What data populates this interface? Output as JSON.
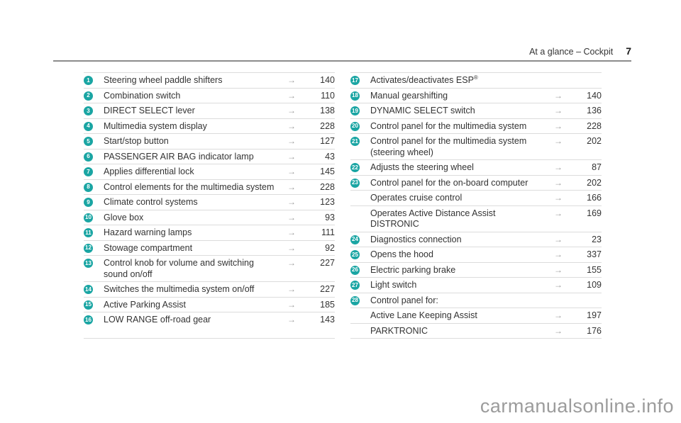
{
  "header": {
    "title": "At a glance – Cockpit",
    "page_number": "7"
  },
  "arrow_glyph": "→",
  "colors": {
    "accent_teal": "#1aa5a3",
    "separator": "#dcdcdc",
    "text": "#333333",
    "arrow_gray": "#9b9b9b",
    "watermark_gray": "#9c9c9c"
  },
  "columns": {
    "left": [
      {
        "num": "1",
        "label": "Steering wheel paddle shifters",
        "page": "140"
      },
      {
        "num": "2",
        "label": "Combination switch",
        "page": "110"
      },
      {
        "num": "3",
        "label": "DIRECT SELECT lever",
        "page": "138"
      },
      {
        "num": "4",
        "label": "Multimedia system display",
        "page": "228"
      },
      {
        "num": "5",
        "label": "Start/stop button",
        "page": "127"
      },
      {
        "num": "6",
        "label": "PASSENGER AIR BAG indicator lamp",
        "page": "43"
      },
      {
        "num": "7",
        "label": "Applies differential lock",
        "page": "145"
      },
      {
        "num": "8",
        "label": "Control elements for the multimedia system",
        "page": "228"
      },
      {
        "num": "9",
        "label": "Climate control systems",
        "page": "123"
      },
      {
        "num": "10",
        "label": "Glove box",
        "page": "93"
      },
      {
        "num": "11",
        "label": "Hazard warning lamps",
        "page": "111"
      },
      {
        "num": "12",
        "label": "Stowage compartment",
        "page": "92"
      },
      {
        "num": "13",
        "label": "Control knob for volume and switching sound on/off",
        "page": "227"
      },
      {
        "num": "14",
        "label": "Switches the multimedia system on/off",
        "page": "227"
      },
      {
        "num": "15",
        "label": "Active Parking Assist",
        "page": "185"
      },
      {
        "num": "16",
        "label": "LOW RANGE off-road gear",
        "page": "143"
      }
    ],
    "right": [
      {
        "num": "17",
        "label": "Activates/deactivates ESP",
        "sup": "®",
        "page": ""
      },
      {
        "num": "18",
        "label": "Manual gearshifting",
        "page": "140"
      },
      {
        "num": "19",
        "label": "DYNAMIC SELECT switch",
        "page": "136"
      },
      {
        "num": "20",
        "label": "Control panel for the multimedia system",
        "page": "228"
      },
      {
        "num": "21",
        "label": "Control panel for the multimedia system (steering wheel)",
        "page": "202"
      },
      {
        "num": "22",
        "label": "Adjusts the steering wheel",
        "page": "87"
      },
      {
        "num": "23",
        "label": "Control panel for the on-board computer",
        "page": "202"
      },
      {
        "num": "",
        "label": "Operates cruise control",
        "page": "166"
      },
      {
        "num": "",
        "label": "Operates Active Distance Assist DISTRONIC",
        "page": "169"
      },
      {
        "num": "24",
        "label": "Diagnostics connection",
        "page": "23"
      },
      {
        "num": "25",
        "label": "Opens the hood",
        "page": "337"
      },
      {
        "num": "26",
        "label": "Electric parking brake",
        "page": "155"
      },
      {
        "num": "27",
        "label": "Light switch",
        "page": "109"
      },
      {
        "num": "28",
        "label": "Control panel for:",
        "page": ""
      },
      {
        "num": "",
        "label": "Active Lane Keeping Assist",
        "page": "197"
      },
      {
        "num": "",
        "label": "PARKTRONIC",
        "page": "176"
      }
    ]
  },
  "watermark": {
    "text": "carmanualsonline.info"
  }
}
